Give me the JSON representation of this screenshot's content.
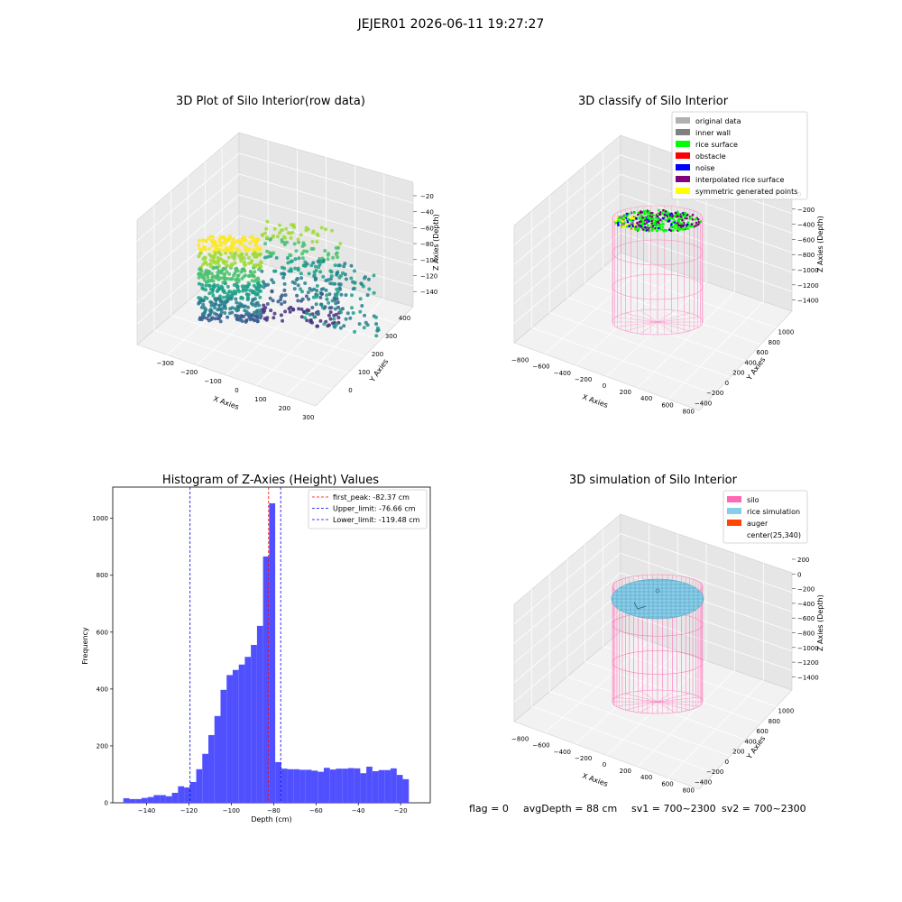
{
  "figure": {
    "title": "JEJER01 2026-06-11 19:27:27",
    "footer": {
      "flag": "flag = 0",
      "avg_depth": "avgDepth = 88 cm",
      "sv1": "sv1 = 700~2300",
      "sv2": "sv2 = 700~2300"
    }
  },
  "chart_data": [
    {
      "type": "scatter",
      "title": "3D Plot of Silo Interior(row data)",
      "xlabel": "X Axies",
      "ylabel": "Y Axies",
      "zlabel": "Z Axies (Depth)",
      "x_ticks": [
        "−300",
        "−200",
        "−100",
        "0",
        "100",
        "200",
        "300"
      ],
      "y_ticks": [
        "0",
        "100",
        "200",
        "300",
        "400"
      ],
      "z_ticks": [
        "−20",
        "−40",
        "−60",
        "−80",
        "−100",
        "−120",
        "−140"
      ],
      "zlim": [
        -155,
        -10
      ],
      "colormap": "viridis",
      "grid": true
    },
    {
      "type": "scatter",
      "title": "3D classify of Silo Interior",
      "xlabel": "X Axies",
      "ylabel": "Y Axies",
      "zlabel": "Z Axies (Depth)",
      "x_ticks": [
        "−800",
        "−600",
        "−400",
        "−200",
        "0",
        "200",
        "400",
        "600",
        "800"
      ],
      "y_ticks": [
        "−400",
        "−200",
        "0",
        "200",
        "400",
        "600",
        "800",
        "1000"
      ],
      "z_ticks": [
        "0",
        "−200",
        "−400",
        "−600",
        "−800",
        "−1000",
        "−1200",
        "−1400"
      ],
      "legend_position": "top-right",
      "legend": [
        {
          "label": "original data",
          "color": "#b0b0b0"
        },
        {
          "label": "inner wall",
          "color": "#808080"
        },
        {
          "label": "rice surface",
          "color": "#00ff00"
        },
        {
          "label": "obstacle",
          "color": "#ff0000"
        },
        {
          "label": "noise",
          "color": "#0000ff"
        },
        {
          "label": "interpolated rice surface",
          "color": "#800080"
        },
        {
          "label": "symmetric generated points",
          "color": "#ffff00"
        }
      ],
      "grid": true
    },
    {
      "type": "bar",
      "title": "Histogram of Z-Axies (Height) Values",
      "xlabel": "Depth (cm)",
      "ylabel": "Frequency",
      "bin_width": 2.87,
      "bin_start": -151,
      "frequencies": [
        16,
        13,
        13,
        17,
        20,
        27,
        27,
        23,
        35,
        58,
        54,
        73,
        118,
        172,
        238,
        305,
        397,
        449,
        467,
        486,
        513,
        555,
        622,
        866,
        1053,
        143,
        120,
        118,
        118,
        116,
        116,
        113,
        109,
        123,
        117,
        120,
        120,
        122,
        121,
        104,
        127,
        111,
        115,
        115,
        121,
        98,
        83
      ],
      "xlim": [
        -156,
        -6
      ],
      "ylim": [
        0,
        1110
      ],
      "x_ticks": [
        -140,
        -120,
        -100,
        -80,
        -60,
        -40,
        -20
      ],
      "y_ticks": [
        0,
        200,
        400,
        600,
        800,
        1000
      ],
      "vlines": [
        {
          "label": "first_peak: -82.37 cm",
          "value": -82.37,
          "color": "#ff0000"
        },
        {
          "label": "Upper_limit: -76.66 cm",
          "value": -76.66,
          "color": "#0000ff"
        },
        {
          "label": "Lower_limit: -119.48 cm",
          "value": -119.48,
          "color": "#0000ff"
        }
      ],
      "bar_color": "#5050ff",
      "legend_position": "top-right"
    },
    {
      "type": "scatter",
      "title": "3D simulation of Silo Interior",
      "xlabel": "X Axies",
      "ylabel": "Y Axies",
      "zlabel": "Z Axies (Depth)",
      "x_ticks": [
        "−800",
        "−600",
        "−400",
        "−200",
        "0",
        "200",
        "400",
        "600",
        "800"
      ],
      "y_ticks": [
        "−400",
        "−200",
        "0",
        "200",
        "400",
        "600",
        "800",
        "1000"
      ],
      "z_ticks": [
        "200",
        "0",
        "−200",
        "−400",
        "−600",
        "−800",
        "−1000",
        "−1200",
        "−1400"
      ],
      "legend_position": "top-right",
      "legend": [
        {
          "label": "silo",
          "color": "#ff69b4"
        },
        {
          "label": "rice simulation",
          "color": "#87ceeb"
        },
        {
          "label": "auger",
          "color": "#ff4500"
        },
        {
          "label": "center(25,340)",
          "color": ""
        }
      ],
      "grid": true
    }
  ]
}
